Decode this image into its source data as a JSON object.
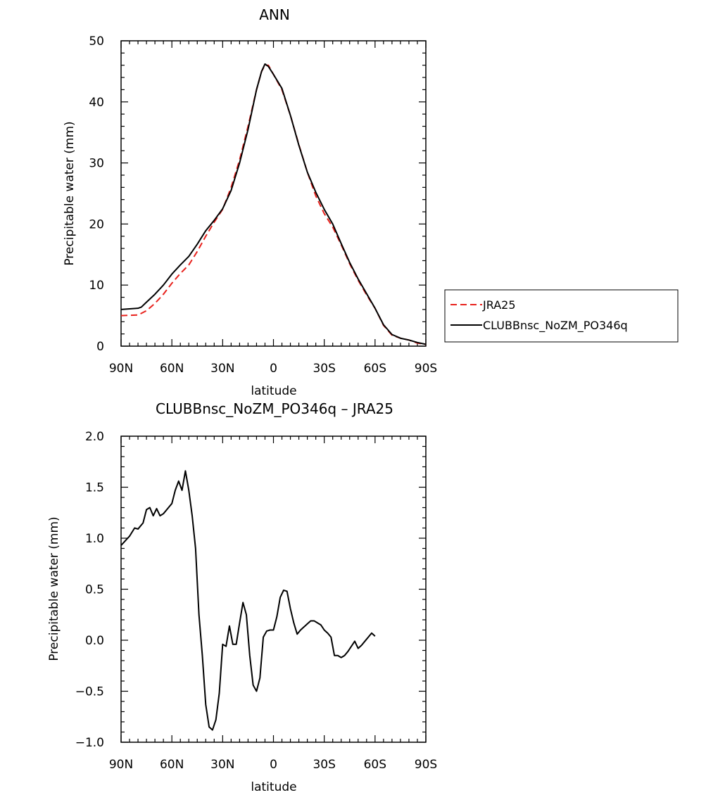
{
  "chart_data": [
    {
      "type": "line",
      "title": "ANN",
      "xlabel": "latitude",
      "ylabel": "Precipitable water (mm)",
      "xlim": [
        90,
        -90
      ],
      "ylim": [
        0,
        50
      ],
      "x_ticks": [
        90,
        60,
        30,
        0,
        -30,
        -60,
        -90
      ],
      "x_tick_labels": [
        "90N",
        "60N",
        "30N",
        "0",
        "30S",
        "60S",
        "90S"
      ],
      "y_ticks": [
        0,
        10,
        20,
        30,
        40,
        50
      ],
      "y_tick_labels": [
        "0",
        "10",
        "20",
        "30",
        "40",
        "50"
      ],
      "legend": "right",
      "series": [
        {
          "name": "JRA25",
          "color": "#e8211c",
          "dash": "dashed",
          "points": [
            [
              90,
              5.0
            ],
            [
              80,
              5.1
            ],
            [
              75,
              5.8
            ],
            [
              70,
              7.0
            ],
            [
              65,
              8.5
            ],
            [
              60,
              10.3
            ],
            [
              55,
              11.9
            ],
            [
              50,
              13.3
            ],
            [
              45,
              15.5
            ],
            [
              40,
              18.0
            ],
            [
              35,
              20.3
            ],
            [
              30,
              22.4
            ],
            [
              25,
              26.0
            ],
            [
              20,
              30.5
            ],
            [
              15,
              36.0
            ],
            [
              10,
              42.0
            ],
            [
              7,
              45.0
            ],
            [
              5,
              46.0
            ],
            [
              3,
              46.0
            ],
            [
              0,
              44.5
            ],
            [
              -5,
              42.0
            ],
            [
              -10,
              37.8
            ],
            [
              -15,
              33.0
            ],
            [
              -20,
              28.5
            ],
            [
              -25,
              24.6
            ],
            [
              -30,
              21.7
            ],
            [
              -35,
              19.5
            ],
            [
              -40,
              16.6
            ],
            [
              -45,
              13.5
            ],
            [
              -50,
              10.8
            ],
            [
              -55,
              8.4
            ],
            [
              -60,
              6.2
            ],
            [
              -65,
              3.4
            ],
            [
              -70,
              1.8
            ],
            [
              -75,
              1.3
            ],
            [
              -80,
              1.0
            ],
            [
              -85,
              0.5
            ],
            [
              -90,
              0.3
            ]
          ]
        },
        {
          "name": "CLUBBnsc_NoZM_PO346q",
          "color": "#000000",
          "dash": "solid",
          "points": [
            [
              90,
              6.0
            ],
            [
              85,
              6.1
            ],
            [
              80,
              6.2
            ],
            [
              78,
              6.4
            ],
            [
              75,
              7.2
            ],
            [
              70,
              8.5
            ],
            [
              65,
              10.0
            ],
            [
              60,
              11.8
            ],
            [
              55,
              13.3
            ],
            [
              50,
              14.7
            ],
            [
              45,
              16.7
            ],
            [
              40,
              18.9
            ],
            [
              35,
              20.6
            ],
            [
              30,
              22.5
            ],
            [
              25,
              25.5
            ],
            [
              20,
              30.0
            ],
            [
              15,
              35.5
            ],
            [
              10,
              42.0
            ],
            [
              7,
              45.0
            ],
            [
              5,
              46.2
            ],
            [
              3,
              45.8
            ],
            [
              0,
              44.5
            ],
            [
              -5,
              42.2
            ],
            [
              -10,
              37.8
            ],
            [
              -15,
              32.9
            ],
            [
              -20,
              28.5
            ],
            [
              -25,
              25.2
            ],
            [
              -30,
              22.4
            ],
            [
              -35,
              20.0
            ],
            [
              -40,
              16.8
            ],
            [
              -45,
              13.7
            ],
            [
              -50,
              11.0
            ],
            [
              -55,
              8.6
            ],
            [
              -60,
              6.2
            ],
            [
              -65,
              3.5
            ],
            [
              -70,
              1.9
            ],
            [
              -75,
              1.3
            ],
            [
              -80,
              1.0
            ],
            [
              -85,
              0.6
            ],
            [
              -90,
              0.3
            ]
          ]
        }
      ]
    },
    {
      "type": "line",
      "title": "CLUBBnsc_NoZM_PO346q – JRA25",
      "xlabel": "latitude",
      "ylabel": "Precipitable water (mm)",
      "xlim": [
        90,
        -90
      ],
      "ylim": [
        -1.0,
        2.0
      ],
      "x_ticks": [
        90,
        60,
        30,
        0,
        -30,
        -60,
        -90
      ],
      "x_tick_labels": [
        "90N",
        "60N",
        "30N",
        "0",
        "30S",
        "60S",
        "90S"
      ],
      "y_ticks": [
        -1.0,
        -0.5,
        0.0,
        0.5,
        1.0,
        1.5,
        2.0
      ],
      "y_tick_labels": [
        "−1.0",
        "−0.5",
        "0.0",
        "0.5",
        "1.0",
        "1.5",
        "2.0"
      ],
      "series": [
        {
          "color": "#000000",
          "dash": "solid",
          "points": [
            [
              90,
              0.93
            ],
            [
              85,
              1.02
            ],
            [
              82,
              1.1
            ],
            [
              80,
              1.09
            ],
            [
              77,
              1.15
            ],
            [
              75,
              1.28
            ],
            [
              73,
              1.3
            ],
            [
              71,
              1.22
            ],
            [
              69,
              1.29
            ],
            [
              67,
              1.22
            ],
            [
              65,
              1.24
            ],
            [
              62,
              1.3
            ],
            [
              60,
              1.34
            ],
            [
              58,
              1.47
            ],
            [
              56,
              1.56
            ],
            [
              54,
              1.47
            ],
            [
              52,
              1.66
            ],
            [
              50,
              1.47
            ],
            [
              48,
              1.22
            ],
            [
              46,
              0.9
            ],
            [
              44,
              0.25
            ],
            [
              42,
              -0.15
            ],
            [
              40,
              -0.63
            ],
            [
              38,
              -0.85
            ],
            [
              36,
              -0.88
            ],
            [
              34,
              -0.78
            ],
            [
              32,
              -0.52
            ],
            [
              30,
              -0.04
            ],
            [
              28,
              -0.06
            ],
            [
              26,
              0.14
            ],
            [
              24,
              -0.04
            ],
            [
              22,
              -0.04
            ],
            [
              20,
              0.17
            ],
            [
              18,
              0.37
            ],
            [
              16,
              0.25
            ],
            [
              14,
              -0.15
            ],
            [
              12,
              -0.44
            ],
            [
              10,
              -0.5
            ],
            [
              8,
              -0.37
            ],
            [
              6,
              0.03
            ],
            [
              4,
              0.09
            ],
            [
              2,
              0.1
            ],
            [
              0,
              0.1
            ],
            [
              -2,
              0.23
            ],
            [
              -4,
              0.42
            ],
            [
              -6,
              0.49
            ],
            [
              -8,
              0.48
            ],
            [
              -10,
              0.31
            ],
            [
              -12,
              0.17
            ],
            [
              -14,
              0.06
            ],
            [
              -16,
              0.1
            ],
            [
              -18,
              0.13
            ],
            [
              -20,
              0.16
            ],
            [
              -22,
              0.19
            ],
            [
              -24,
              0.19
            ],
            [
              -26,
              0.17
            ],
            [
              -28,
              0.15
            ],
            [
              -30,
              0.1
            ],
            [
              -32,
              0.07
            ],
            [
              -34,
              0.03
            ],
            [
              -36,
              -0.15
            ],
            [
              -38,
              -0.15
            ],
            [
              -40,
              -0.17
            ],
            [
              -42,
              -0.15
            ],
            [
              -44,
              -0.11
            ],
            [
              -46,
              -0.06
            ],
            [
              -48,
              -0.01
            ],
            [
              -50,
              -0.08
            ],
            [
              -52,
              -0.05
            ],
            [
              -54,
              -0.01
            ],
            [
              -56,
              0.03
            ],
            [
              -58,
              0.07
            ],
            [
              -60,
              0.04
            ]
          ]
        }
      ]
    }
  ]
}
